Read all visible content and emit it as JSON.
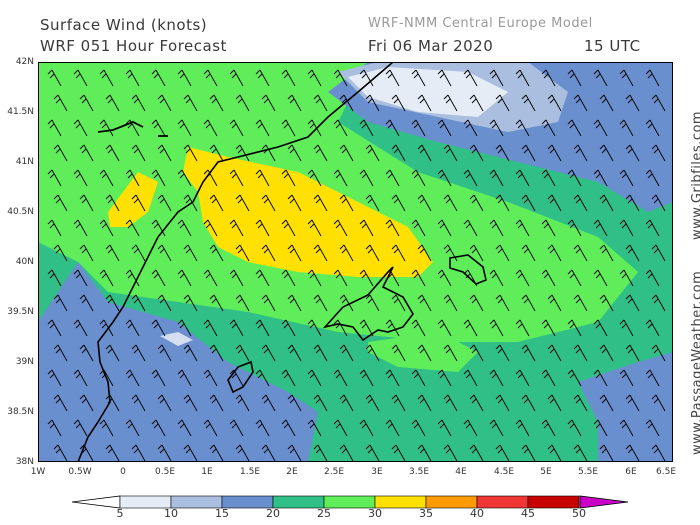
{
  "header": {
    "title": "Surface Wind (knots)",
    "model_run": "WRF 051 Hour Forecast",
    "model_name": "WRF-NMM Central Europe Model",
    "date": "Fri 06 Mar 2020",
    "time": "15 UTC"
  },
  "side_credits": {
    "top": "www.Gribfiles.com",
    "bottom": "www.PassageWeather.com"
  },
  "axes": {
    "lat_labels": [
      "42N",
      "41.5N",
      "41N",
      "40.5N",
      "40N",
      "39.5N",
      "39N",
      "38.5N",
      "38N"
    ],
    "lon_labels": [
      "1W",
      "0.5W",
      "0",
      "0.5E",
      "1E",
      "1.5E",
      "2E",
      "2.5E",
      "3E",
      "3.5E",
      "4E",
      "4.5E",
      "5E",
      "5.5E",
      "6E",
      "6.5E"
    ]
  },
  "legend": {
    "labels": [
      "5",
      "10",
      "15",
      "20",
      "25",
      "30",
      "35",
      "40",
      "45",
      "50"
    ],
    "colors": [
      "#e6ecf5",
      "#aabfdf",
      "#6a8fce",
      "#2fbf87",
      "#5fee5a",
      "#ffe000",
      "#ff9a00",
      "#f03535",
      "#c80000",
      "#c800c8"
    ]
  },
  "map": {
    "colors": {
      "land_outline": "#000000",
      "barb": "#000000"
    },
    "wind_direction": "northwest"
  }
}
